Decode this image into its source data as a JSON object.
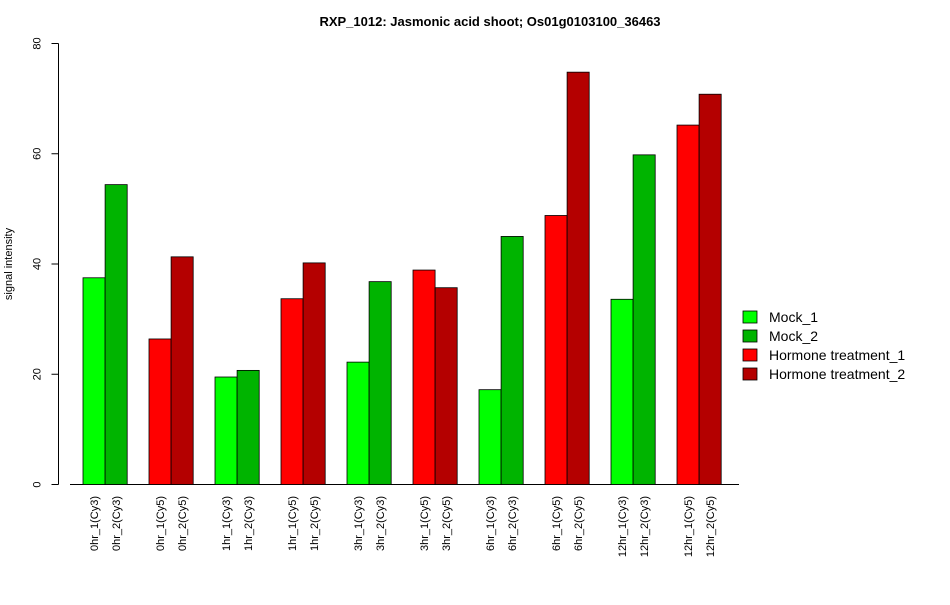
{
  "chart_data": {
    "type": "bar",
    "title": "RXP_1012: Jasmonic acid shoot; Os01g0103100_36463",
    "xlabel": "",
    "ylabel": "signal intensity",
    "ylim": [
      0,
      80
    ],
    "yticks": [
      0,
      20,
      40,
      60,
      80
    ],
    "grid": false,
    "legend_position": "right",
    "legend": [
      {
        "name": "Mock_1",
        "color": "#00ff00"
      },
      {
        "name": "Mock_2",
        "color": "#00b400"
      },
      {
        "name": "Hormone treatment_1",
        "color": "#ff0000"
      },
      {
        "name": "Hormone treatment_2",
        "color": "#b40000"
      }
    ],
    "bars": [
      {
        "label": "0hr_1(Cy3)",
        "value": 37.5,
        "color": "#00ff00"
      },
      {
        "label": "0hr_2(Cy3)",
        "value": 54.4,
        "color": "#00b400"
      },
      {
        "label": "0hr_1(Cy5)",
        "value": 26.4,
        "color": "#ff0000"
      },
      {
        "label": "0hr_2(Cy5)",
        "value": 41.3,
        "color": "#b40000"
      },
      {
        "label": "1hr_1(Cy3)",
        "value": 19.5,
        "color": "#00ff00"
      },
      {
        "label": "1hr_2(Cy3)",
        "value": 20.7,
        "color": "#00b400"
      },
      {
        "label": "1hr_1(Cy5)",
        "value": 33.7,
        "color": "#ff0000"
      },
      {
        "label": "1hr_2(Cy5)",
        "value": 40.2,
        "color": "#b40000"
      },
      {
        "label": "3hr_1(Cy3)",
        "value": 22.2,
        "color": "#00ff00"
      },
      {
        "label": "3hr_2(Cy3)",
        "value": 36.8,
        "color": "#00b400"
      },
      {
        "label": "3hr_1(Cy5)",
        "value": 38.9,
        "color": "#ff0000"
      },
      {
        "label": "3hr_2(Cy5)",
        "value": 35.7,
        "color": "#b40000"
      },
      {
        "label": "6hr_1(Cy3)",
        "value": 17.2,
        "color": "#00ff00"
      },
      {
        "label": "6hr_2(Cy3)",
        "value": 45.0,
        "color": "#00b400"
      },
      {
        "label": "6hr_1(Cy5)",
        "value": 48.8,
        "color": "#ff0000"
      },
      {
        "label": "6hr_2(Cy5)",
        "value": 74.8,
        "color": "#b40000"
      },
      {
        "label": "12hr_1(Cy3)",
        "value": 33.6,
        "color": "#00ff00"
      },
      {
        "label": "12hr_2(Cy3)",
        "value": 59.8,
        "color": "#00b400"
      },
      {
        "label": "12hr_1(Cy5)",
        "value": 65.2,
        "color": "#ff0000"
      },
      {
        "label": "12hr_2(Cy5)",
        "value": 70.8,
        "color": "#b40000"
      }
    ]
  }
}
